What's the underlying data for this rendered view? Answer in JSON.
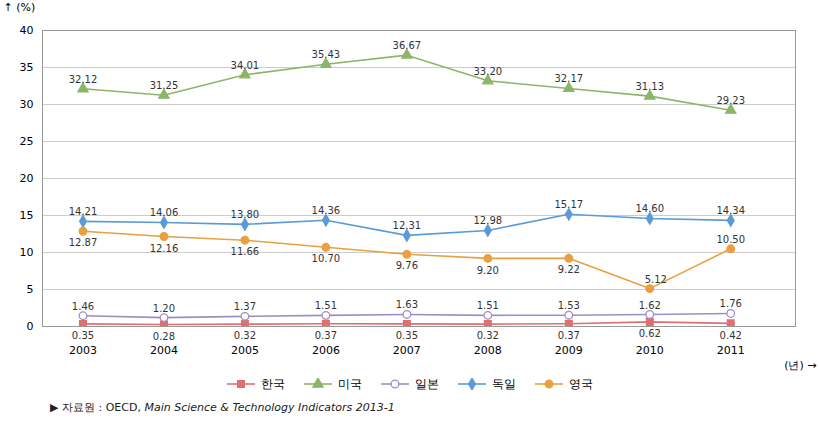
{
  "chart_data": {
    "type": "line",
    "xlabel": "(년)",
    "ylabel": "(%)",
    "x": [
      2003,
      2004,
      2005,
      2006,
      2007,
      2008,
      2009,
      2010,
      2011
    ],
    "xlim": [
      2002.5,
      2011.8
    ],
    "xticks": [
      2003,
      2004,
      2005,
      2006,
      2007,
      2008,
      2009,
      2010,
      2011
    ],
    "ylim": [
      0,
      40
    ],
    "yticks": [
      0,
      5,
      10,
      15,
      20,
      25,
      30,
      35,
      40
    ],
    "grid": true,
    "legend": "bottom",
    "data_labels": true,
    "source": [
      "▶ 자료원 : OECD,",
      "Main Science & Technology Indicators 2013-1"
    ],
    "series": [
      {
        "name": "한국",
        "color": "#E07070",
        "marker": "square",
        "values": [
          0.35,
          0.28,
          0.32,
          0.37,
          0.35,
          0.32,
          0.37,
          0.62,
          0.42
        ],
        "value_labels": [
          "0.35",
          "0.28",
          "0.32",
          "0.37",
          "0.35",
          "0.32",
          "0.37",
          "0.62",
          "0.42"
        ]
      },
      {
        "name": "미국",
        "color": "#8DB56A",
        "marker": "triangle",
        "values": [
          32.12,
          31.25,
          34.01,
          35.43,
          36.67,
          33.2,
          32.17,
          31.13,
          29.23
        ],
        "value_labels": [
          "32.12",
          "31.25",
          "34.01",
          "35.43",
          "36.67",
          "33.20",
          "32.17",
          "31.13",
          "29.23"
        ]
      },
      {
        "name": "일본",
        "color": "#9B8FC7",
        "marker": "circle_open",
        "values": [
          1.46,
          1.2,
          1.37,
          1.51,
          1.63,
          1.51,
          1.53,
          1.62,
          1.76
        ],
        "value_labels": [
          "1.46",
          "1.20",
          "1.37",
          "1.51",
          "1.63",
          "1.51",
          "1.53",
          "1.62",
          "1.76"
        ]
      },
      {
        "name": "독일",
        "color": "#5B9BD5",
        "marker": "diamond",
        "values": [
          14.21,
          14.06,
          13.8,
          14.36,
          12.31,
          12.98,
          15.17,
          14.6,
          14.34
        ],
        "value_labels": [
          "14.21",
          "14.06",
          "13.80",
          "14.36",
          "12.31",
          "12.98",
          "15.17",
          "14.60",
          "14.34"
        ]
      },
      {
        "name": "영국",
        "color": "#E8A040",
        "marker": "circle",
        "values": [
          12.87,
          12.16,
          11.66,
          10.7,
          9.76,
          9.2,
          9.22,
          5.12,
          10.5
        ],
        "value_labels": [
          "12.87",
          "12.16",
          "11.66",
          "10.70",
          "9.76",
          "9.20",
          "9.22",
          "5.12",
          "10.50"
        ]
      }
    ]
  }
}
